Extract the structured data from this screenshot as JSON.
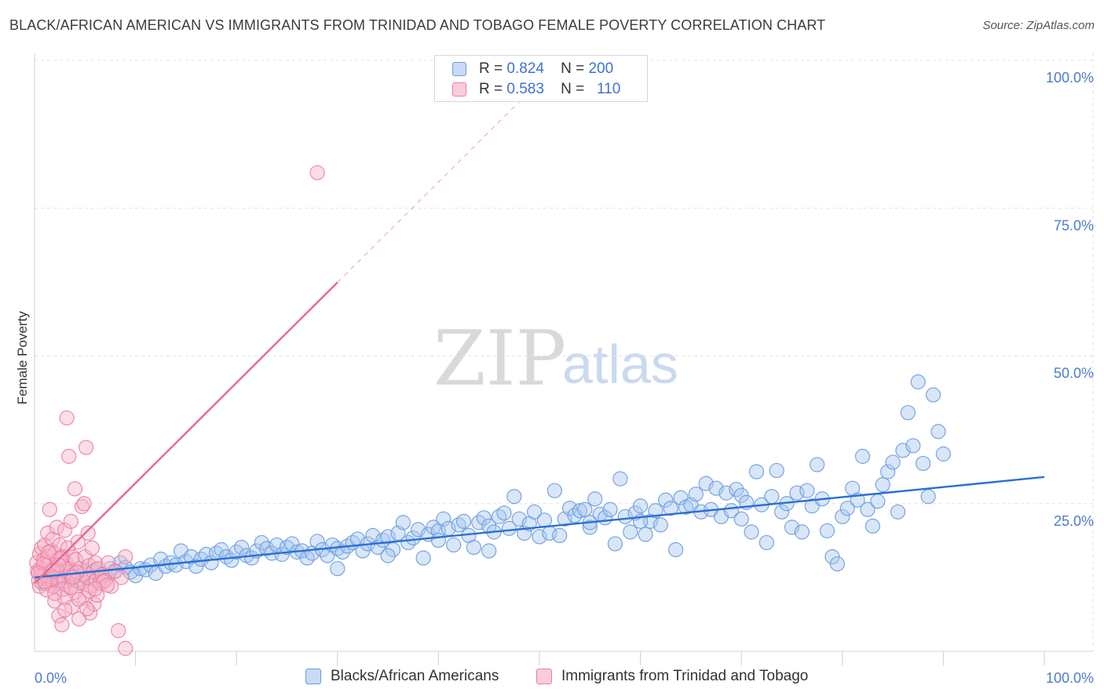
{
  "title": "BLACK/AFRICAN AMERICAN VS IMMIGRANTS FROM TRINIDAD AND TOBAGO FEMALE POVERTY CORRELATION CHART",
  "source": "Source: ZipAtlas.com",
  "watermark": {
    "zip": "ZIP",
    "atlas": "atlas"
  },
  "colors": {
    "blue_fill": "#a9c8f0",
    "blue_stroke": "#6a9be0",
    "blue_line": "#2a6fd4",
    "pink_fill": "#f7b6c9",
    "pink_stroke": "#ea7fa0",
    "pink_line": "#e06a92",
    "grid": "#e2e2e2",
    "tick_text": "#4a7bd0"
  },
  "legend": {
    "rows": [
      {
        "r_label": "R =",
        "r_value": "0.824",
        "n_label": "N =",
        "n_value": "200"
      },
      {
        "r_label": "R =",
        "r_value": "0.583",
        "n_label": "N =",
        "n_value": "110"
      }
    ]
  },
  "bottom_legend": [
    "Blacks/African Americans",
    "Immigrants from Trinidad and Tobago"
  ],
  "chart_data": {
    "type": "scatter",
    "title": "BLACK/AFRICAN AMERICAN VS IMMIGRANTS FROM TRINIDAD AND TOBAGO FEMALE POVERTY CORRELATION CHART",
    "xlabel": "",
    "ylabel": "Female Poverty",
    "xlim": [
      0,
      100
    ],
    "ylim": [
      0,
      100
    ],
    "x_tick_labels": [
      "0.0%",
      "100.0%"
    ],
    "y_tick_labels": [
      "25.0%",
      "50.0%",
      "75.0%",
      "100.0%"
    ],
    "y_ticks": [
      25,
      50,
      75,
      100
    ],
    "grid": true,
    "legend_placement": "top-center",
    "series": [
      {
        "name": "Blacks/African Americans",
        "r": 0.824,
        "n": 200,
        "trend": {
          "x0": 0,
          "y0": 12.5,
          "x1": 100,
          "y1": 29.5,
          "solid_to": 100
        },
        "points": [
          [
            0.8,
            11.5
          ],
          [
            1.0,
            13.0
          ],
          [
            1.3,
            12.0
          ],
          [
            1.6,
            12.5
          ],
          [
            1.9,
            11.0
          ],
          [
            2.2,
            13.5
          ],
          [
            2.6,
            12.2
          ],
          [
            3.0,
            11.8
          ],
          [
            3.4,
            13.2
          ],
          [
            3.8,
            12.0
          ],
          [
            4.2,
            12.8
          ],
          [
            4.6,
            11.6
          ],
          [
            5.0,
            13.4
          ],
          [
            5.5,
            12.4
          ],
          [
            6.0,
            13.8
          ],
          [
            6.5,
            12.6
          ],
          [
            7.0,
            13.0
          ],
          [
            7.5,
            14.0
          ],
          [
            8.0,
            13.6
          ],
          [
            8.5,
            15.0
          ],
          [
            9.0,
            14.2
          ],
          [
            9.5,
            13.4
          ],
          [
            10.0,
            12.8
          ],
          [
            10.5,
            14.0
          ],
          [
            11.0,
            13.8
          ],
          [
            11.5,
            14.6
          ],
          [
            12.0,
            13.2
          ],
          [
            12.5,
            15.6
          ],
          [
            13.0,
            14.4
          ],
          [
            13.5,
            15.0
          ],
          [
            14.0,
            14.6
          ],
          [
            14.5,
            17.0
          ],
          [
            15.0,
            15.2
          ],
          [
            15.5,
            16.0
          ],
          [
            16.0,
            14.4
          ],
          [
            16.5,
            15.6
          ],
          [
            17.0,
            16.4
          ],
          [
            17.5,
            15.0
          ],
          [
            18.0,
            16.6
          ],
          [
            18.5,
            17.2
          ],
          [
            19.0,
            16.0
          ],
          [
            19.5,
            15.4
          ],
          [
            20.0,
            16.8
          ],
          [
            20.5,
            17.6
          ],
          [
            21.0,
            16.2
          ],
          [
            21.5,
            15.8
          ],
          [
            22.0,
            17.0
          ],
          [
            22.5,
            18.4
          ],
          [
            23.0,
            17.4
          ],
          [
            23.5,
            16.6
          ],
          [
            24.0,
            18.0
          ],
          [
            24.5,
            16.4
          ],
          [
            25.0,
            17.6
          ],
          [
            25.5,
            18.2
          ],
          [
            26.0,
            16.8
          ],
          [
            26.5,
            17.0
          ],
          [
            27.0,
            15.8
          ],
          [
            27.5,
            16.6
          ],
          [
            28.0,
            18.6
          ],
          [
            28.5,
            17.2
          ],
          [
            29.0,
            16.2
          ],
          [
            29.5,
            18.0
          ],
          [
            30.0,
            17.4
          ],
          [
            30.5,
            16.8
          ],
          [
            31.0,
            17.8
          ],
          [
            31.5,
            18.4
          ],
          [
            32.0,
            19.0
          ],
          [
            32.5,
            17.0
          ],
          [
            33.0,
            18.2
          ],
          [
            33.5,
            19.6
          ],
          [
            34.0,
            17.6
          ],
          [
            34.5,
            18.8
          ],
          [
            35.0,
            19.4
          ],
          [
            35.5,
            17.2
          ],
          [
            36.0,
            20.0
          ],
          [
            36.5,
            21.8
          ],
          [
            37.0,
            18.4
          ],
          [
            37.5,
            19.2
          ],
          [
            38.0,
            20.6
          ],
          [
            38.5,
            15.8
          ],
          [
            39.0,
            19.8
          ],
          [
            39.5,
            21.0
          ],
          [
            40.0,
            20.4
          ],
          [
            40.5,
            22.4
          ],
          [
            41.0,
            20.8
          ],
          [
            41.5,
            18.0
          ],
          [
            42.0,
            21.4
          ],
          [
            42.5,
            22.0
          ],
          [
            43.0,
            19.6
          ],
          [
            43.5,
            17.6
          ],
          [
            44.0,
            21.8
          ],
          [
            44.5,
            22.6
          ],
          [
            45.0,
            21.2
          ],
          [
            45.5,
            20.2
          ],
          [
            46.0,
            22.8
          ],
          [
            46.5,
            23.4
          ],
          [
            47.0,
            20.8
          ],
          [
            47.5,
            26.2
          ],
          [
            48.0,
            22.4
          ],
          [
            48.5,
            20.0
          ],
          [
            49.0,
            21.6
          ],
          [
            49.5,
            23.6
          ],
          [
            50.0,
            19.4
          ],
          [
            50.5,
            22.2
          ],
          [
            51.0,
            20.0
          ],
          [
            51.5,
            27.2
          ],
          [
            52.0,
            19.6
          ],
          [
            52.5,
            22.4
          ],
          [
            53.0,
            24.2
          ],
          [
            53.5,
            23.0
          ],
          [
            54.0,
            23.8
          ],
          [
            54.5,
            24.0
          ],
          [
            55.0,
            21.0
          ],
          [
            55.5,
            25.8
          ],
          [
            56.0,
            23.2
          ],
          [
            56.5,
            22.6
          ],
          [
            57.0,
            24.0
          ],
          [
            57.5,
            18.2
          ],
          [
            58.0,
            29.2
          ],
          [
            58.5,
            22.8
          ],
          [
            59.0,
            20.2
          ],
          [
            59.5,
            23.4
          ],
          [
            60.0,
            24.6
          ],
          [
            60.5,
            19.8
          ],
          [
            61.0,
            22.0
          ],
          [
            61.5,
            23.8
          ],
          [
            62.0,
            21.4
          ],
          [
            62.5,
            25.6
          ],
          [
            63.0,
            24.2
          ],
          [
            63.5,
            17.2
          ],
          [
            64.0,
            26.0
          ],
          [
            64.5,
            24.4
          ],
          [
            65.0,
            24.8
          ],
          [
            65.5,
            26.6
          ],
          [
            66.0,
            23.6
          ],
          [
            66.5,
            28.4
          ],
          [
            67.0,
            24.0
          ],
          [
            67.5,
            27.6
          ],
          [
            68.0,
            22.8
          ],
          [
            68.5,
            26.8
          ],
          [
            69.0,
            23.8
          ],
          [
            69.5,
            27.4
          ],
          [
            70.0,
            26.4
          ],
          [
            70.5,
            25.2
          ],
          [
            71.0,
            20.2
          ],
          [
            71.5,
            30.4
          ],
          [
            72.0,
            24.8
          ],
          [
            72.5,
            18.4
          ],
          [
            73.0,
            26.2
          ],
          [
            73.5,
            30.6
          ],
          [
            74.0,
            23.6
          ],
          [
            74.5,
            25.0
          ],
          [
            75.0,
            21.0
          ],
          [
            75.5,
            26.8
          ],
          [
            76.0,
            20.2
          ],
          [
            76.5,
            27.2
          ],
          [
            77.0,
            24.6
          ],
          [
            77.5,
            31.6
          ],
          [
            78.0,
            25.8
          ],
          [
            78.5,
            20.4
          ],
          [
            79.0,
            16.0
          ],
          [
            79.5,
            14.8
          ],
          [
            80.0,
            22.8
          ],
          [
            80.5,
            24.2
          ],
          [
            81.0,
            27.6
          ],
          [
            81.5,
            25.6
          ],
          [
            82.0,
            33.0
          ],
          [
            82.5,
            24.0
          ],
          [
            83.0,
            21.2
          ],
          [
            83.5,
            25.4
          ],
          [
            84.0,
            28.2
          ],
          [
            84.5,
            30.4
          ],
          [
            85.0,
            32.0
          ],
          [
            85.5,
            23.6
          ],
          [
            86.0,
            34.0
          ],
          [
            86.5,
            40.4
          ],
          [
            87.0,
            34.8
          ],
          [
            87.5,
            45.6
          ],
          [
            88.0,
            31.8
          ],
          [
            88.5,
            26.2
          ],
          [
            89.0,
            43.4
          ],
          [
            89.5,
            37.2
          ],
          [
            90.0,
            33.4
          ],
          [
            30.0,
            14.0
          ],
          [
            35.0,
            16.2
          ],
          [
            40.0,
            18.8
          ],
          [
            45.0,
            17.0
          ],
          [
            55.0,
            21.8
          ],
          [
            60.0,
            22.0
          ],
          [
            70.0,
            22.4
          ]
        ]
      },
      {
        "name": "Immigrants from Trinidad and Tobago",
        "r": 0.583,
        "n": 110,
        "trend": {
          "x0": 0,
          "y0": 11.5,
          "x1": 48,
          "y1": 93,
          "solid_to": 30.0
        },
        "points": [
          [
            0.2,
            15.0
          ],
          [
            0.3,
            13.5
          ],
          [
            0.4,
            12.0
          ],
          [
            0.5,
            16.5
          ],
          [
            0.5,
            11.0
          ],
          [
            0.6,
            14.0
          ],
          [
            0.7,
            17.5
          ],
          [
            0.8,
            12.5
          ],
          [
            0.9,
            15.5
          ],
          [
            1.0,
            13.0
          ],
          [
            1.0,
            18.0
          ],
          [
            1.1,
            11.5
          ],
          [
            1.2,
            14.5
          ],
          [
            1.3,
            16.0
          ],
          [
            1.3,
            20.0
          ],
          [
            1.4,
            12.0
          ],
          [
            1.5,
            15.0
          ],
          [
            1.5,
            24.0
          ],
          [
            1.6,
            13.5
          ],
          [
            1.7,
            17.0
          ],
          [
            1.8,
            11.0
          ],
          [
            1.8,
            19.0
          ],
          [
            1.9,
            14.0
          ],
          [
            2.0,
            16.5
          ],
          [
            2.0,
            8.5
          ],
          [
            2.1,
            12.5
          ],
          [
            2.2,
            21.0
          ],
          [
            2.3,
            15.5
          ],
          [
            2.4,
            13.0
          ],
          [
            2.4,
            6.0
          ],
          [
            2.5,
            18.0
          ],
          [
            2.6,
            11.5
          ],
          [
            2.7,
            14.5
          ],
          [
            2.7,
            4.5
          ],
          [
            2.8,
            16.0
          ],
          [
            2.9,
            12.0
          ],
          [
            3.0,
            20.5
          ],
          [
            3.0,
            9.0
          ],
          [
            3.1,
            15.0
          ],
          [
            3.2,
            13.5
          ],
          [
            3.2,
            39.5
          ],
          [
            3.3,
            17.5
          ],
          [
            3.4,
            11.0
          ],
          [
            3.4,
            33.0
          ],
          [
            3.5,
            14.0
          ],
          [
            3.6,
            22.0
          ],
          [
            3.7,
            12.5
          ],
          [
            3.7,
            7.5
          ],
          [
            3.8,
            16.0
          ],
          [
            3.9,
            13.0
          ],
          [
            4.0,
            27.5
          ],
          [
            4.0,
            10.0
          ],
          [
            4.1,
            15.5
          ],
          [
            4.2,
            12.0
          ],
          [
            4.3,
            18.5
          ],
          [
            4.4,
            5.5
          ],
          [
            4.5,
            14.0
          ],
          [
            4.6,
            11.5
          ],
          [
            4.7,
            24.5
          ],
          [
            4.8,
            13.0
          ],
          [
            4.9,
            25.0
          ],
          [
            5.0,
            16.0
          ],
          [
            5.0,
            9.0
          ],
          [
            5.1,
            34.5
          ],
          [
            5.2,
            12.5
          ],
          [
            5.3,
            20.0
          ],
          [
            5.4,
            14.5
          ],
          [
            5.5,
            6.5
          ],
          [
            5.6,
            11.0
          ],
          [
            5.7,
            17.5
          ],
          [
            5.8,
            13.5
          ],
          [
            5.9,
            8.0
          ],
          [
            6.0,
            15.0
          ],
          [
            6.1,
            12.0
          ],
          [
            6.2,
            9.5
          ],
          [
            6.3,
            14.0
          ],
          [
            6.5,
            11.5
          ],
          [
            6.7,
            13.0
          ],
          [
            7.0,
            12.0
          ],
          [
            7.3,
            15.0
          ],
          [
            7.6,
            11.0
          ],
          [
            8.0,
            13.5
          ],
          [
            8.3,
            3.5
          ],
          [
            8.6,
            12.5
          ],
          [
            9.0,
            16.0
          ],
          [
            2.2,
            13.8
          ],
          [
            1.6,
            12.2
          ],
          [
            0.9,
            14.8
          ],
          [
            2.8,
            10.5
          ],
          [
            3.6,
            10.8
          ],
          [
            4.4,
            8.8
          ],
          [
            5.2,
            7.2
          ],
          [
            1.2,
            10.4
          ],
          [
            2.0,
            9.8
          ],
          [
            3.0,
            7.0
          ],
          [
            6.8,
            11.8
          ],
          [
            0.6,
            12.8
          ],
          [
            1.4,
            16.8
          ],
          [
            2.6,
            15.8
          ],
          [
            4.2,
            13.4
          ],
          [
            28.0,
            81.0
          ],
          [
            9.0,
            0.5
          ],
          [
            5.4,
            10.2
          ],
          [
            3.8,
            12.6
          ],
          [
            1.8,
            13.6
          ],
          [
            2.4,
            14.6
          ],
          [
            0.4,
            13.2
          ],
          [
            1.0,
            11.8
          ],
          [
            7.2,
            11.2
          ],
          [
            6.0,
            10.6
          ]
        ]
      }
    ]
  }
}
